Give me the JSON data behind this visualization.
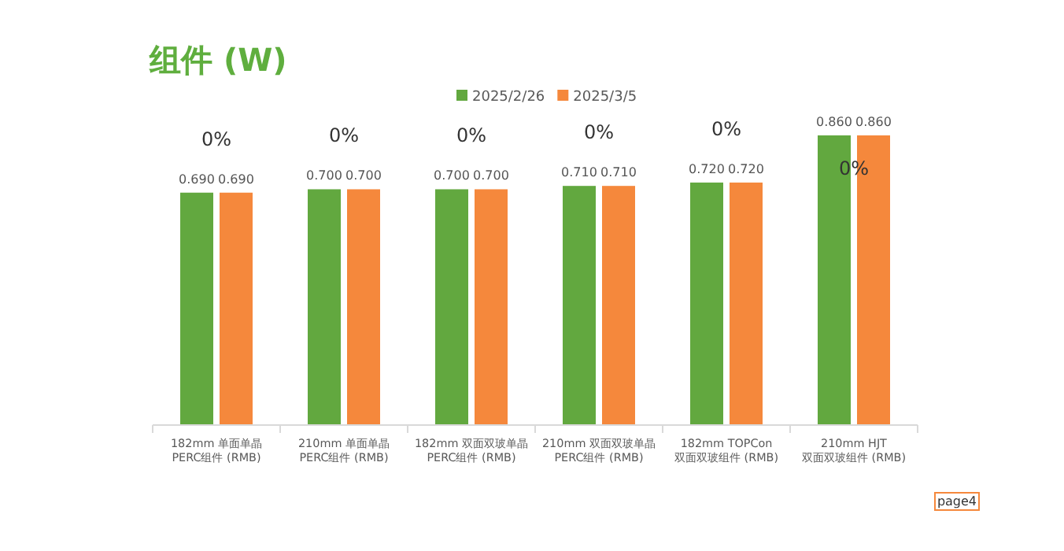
{
  "chart_data": {
    "type": "bar",
    "title": "组件 (W)",
    "categories": [
      "182mm 单面单晶\nPERC组件 (RMB)",
      "210mm 单面单晶\nPERC组件 (RMB)",
      "182mm 双面双玻单晶\nPERC组件 (RMB)",
      "210mm 双面双玻单晶\nPERC组件 (RMB)",
      "182mm TOPCon\n双面双玻组件 (RMB)",
      "210mm HJT\n双面双玻组件 (RMB)"
    ],
    "series": [
      {
        "name": "2025/2/26",
        "color": "#62a83f",
        "values": [
          0.69,
          0.7,
          0.7,
          0.71,
          0.72,
          0.86
        ],
        "value_labels": [
          "0.690",
          "0.700",
          "0.700",
          "0.710",
          "0.720",
          "0.860"
        ]
      },
      {
        "name": "2025/3/5",
        "color": "#f5883c",
        "values": [
          0.69,
          0.7,
          0.7,
          0.71,
          0.72,
          0.86
        ],
        "value_labels": [
          "0.690",
          "0.700",
          "0.700",
          "0.710",
          "0.720",
          "0.860"
        ]
      }
    ],
    "annotations": [
      "0%",
      "0%",
      "0%",
      "0%",
      "0%",
      "0%",
      "page4"
    ],
    "legend": "top"
  }
}
